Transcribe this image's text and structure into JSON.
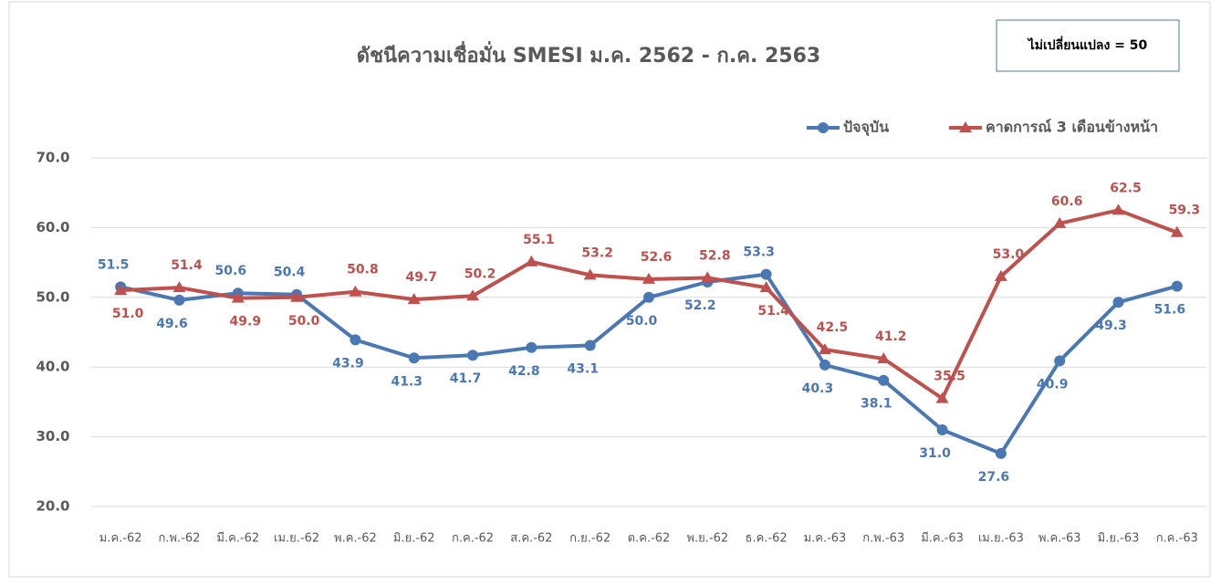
{
  "chart_data": {
    "type": "line",
    "title": "ดัชนีความเชื่อมั่น SMESI ม.ค. 2562 - ก.ค. 2563",
    "annotation": "ไม่เปลี่ยนแปลง = 50",
    "categories": [
      "ม.ค.-62",
      "ก.พ.-62",
      "มี.ค.-62",
      "เม.ย.-62",
      "พ.ค.-62",
      "มิ.ย.-62",
      "ก.ค.-62",
      "ส.ค.-62",
      "ก.ย.-62",
      "ต.ค.-62",
      "พ.ย.-62",
      "ธ.ค.-62",
      "ม.ค.-63",
      "ก.พ.-63",
      "มี.ค.-63",
      "เม.ย.-63",
      "พ.ค.-63",
      "มิ.ย.-63",
      "ก.ค.-63"
    ],
    "series": [
      {
        "name": "ปัจจุบัน",
        "color": "#4a78b5",
        "marker": "circle",
        "values": [
          51.5,
          49.6,
          50.6,
          50.4,
          43.9,
          41.3,
          41.7,
          42.8,
          43.1,
          50.0,
          52.2,
          53.3,
          40.3,
          38.1,
          31.0,
          27.6,
          40.9,
          49.3,
          51.6
        ],
        "value_labels": [
          "51.5",
          "49.6",
          "50.6",
          "50.4",
          "43.9",
          "41.3",
          "41.7",
          "42.8",
          "43.1",
          "50.0",
          "52.2",
          "53.3",
          "40.3",
          "38.1",
          "31.0",
          "27.6",
          "40.9",
          "49.3",
          "51.6"
        ]
      },
      {
        "name": "คาดการณ์ 3 เดือนข้างหน้า",
        "color": "#c0504d",
        "marker": "triangle",
        "values": [
          51.0,
          51.4,
          49.9,
          50.0,
          50.8,
          49.7,
          50.2,
          55.1,
          53.2,
          52.6,
          52.8,
          51.4,
          42.5,
          41.2,
          35.5,
          53.0,
          60.6,
          62.5,
          59.3
        ],
        "value_labels": [
          "51.0",
          "51.4",
          "49.9",
          "50.0",
          "50.8",
          "49.7",
          "50.2",
          "55.1",
          "53.2",
          "52.6",
          "52.8",
          "51.4",
          "42.5",
          "41.2",
          "35.5",
          "53.0",
          "60.6",
          "62.5",
          "59.3"
        ]
      }
    ],
    "ylim": [
      20,
      70
    ],
    "yticks": [
      {
        "value": 20,
        "label": "20.0"
      },
      {
        "value": 30,
        "label": "30.0"
      },
      {
        "value": 40,
        "label": "40.0"
      },
      {
        "value": 50,
        "label": "50.0"
      },
      {
        "value": 60,
        "label": "60.0"
      },
      {
        "value": 70,
        "label": "70.0"
      }
    ],
    "grid": true,
    "legend": "top-right"
  }
}
